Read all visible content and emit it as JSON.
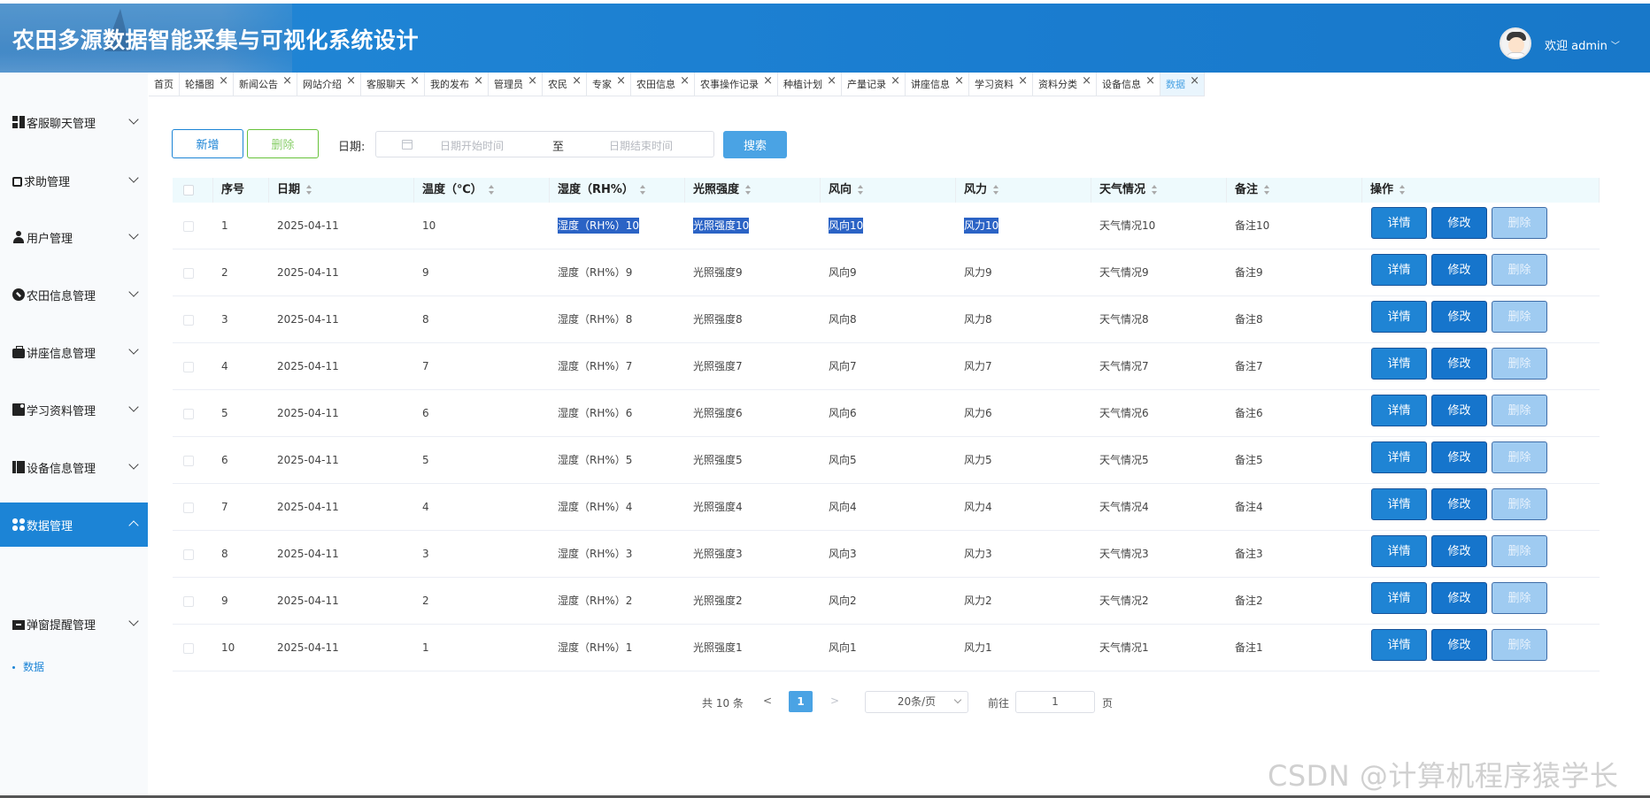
{
  "header": {
    "title": "农田多源数据智能采集与可视化系统设计",
    "welcome": "欢迎 admin"
  },
  "tabs": [
    {
      "label": "首页",
      "closable": false
    },
    {
      "label": "轮播图",
      "closable": true
    },
    {
      "label": "新闻公告",
      "closable": true
    },
    {
      "label": "网站介绍",
      "closable": true
    },
    {
      "label": "客服聊天",
      "closable": true
    },
    {
      "label": "我的发布",
      "closable": true
    },
    {
      "label": "管理员",
      "closable": true
    },
    {
      "label": "农民",
      "closable": true
    },
    {
      "label": "专家",
      "closable": true
    },
    {
      "label": "农田信息",
      "closable": true
    },
    {
      "label": "农事操作记录",
      "closable": true
    },
    {
      "label": "种植计划",
      "closable": true
    },
    {
      "label": "产量记录",
      "closable": true
    },
    {
      "label": "讲座信息",
      "closable": true
    },
    {
      "label": "学习资料",
      "closable": true
    },
    {
      "label": "资料分类",
      "closable": true
    },
    {
      "label": "设备信息",
      "closable": true
    },
    {
      "label": "数据",
      "closable": true,
      "active": true
    }
  ],
  "sidebar": {
    "items": [
      {
        "label": "客服聊天管理",
        "icon": "dashboard-icon"
      },
      {
        "label": "求助管理",
        "icon": "copy-icon"
      },
      {
        "label": "用户管理",
        "icon": "user-icon"
      },
      {
        "label": "农田信息管理",
        "icon": "compass-icon"
      },
      {
        "label": "讲座信息管理",
        "icon": "briefcase-icon"
      },
      {
        "label": "学习资料管理",
        "icon": "book-icon"
      },
      {
        "label": "设备信息管理",
        "icon": "columns-icon"
      },
      {
        "label": "数据管理",
        "icon": "clover-icon",
        "active": true
      },
      {
        "label": "弹窗提醒管理",
        "icon": "box-icon"
      }
    ],
    "sub_item": "数据"
  },
  "toolbar": {
    "add_label": "新增",
    "delete_label": "删除",
    "date_label": "日期:",
    "date_start_placeholder": "日期开始时间",
    "date_separator": "至",
    "date_end_placeholder": "日期结束时间",
    "search_label": "搜索"
  },
  "table": {
    "columns": [
      "序号",
      "日期",
      "温度（℃）",
      "湿度（RH%）",
      "光照强度",
      "风向",
      "风力",
      "天气情况",
      "备注",
      "操作"
    ],
    "rows": [
      [
        "1",
        "2025-04-11",
        "10",
        "湿度（RH%）10",
        "光照强度10",
        "风向10",
        "风力10",
        "天气情况10",
        "备注10"
      ],
      [
        "2",
        "2025-04-11",
        "9",
        "湿度（RH%）9",
        "光照强度9",
        "风向9",
        "风力9",
        "天气情况9",
        "备注9"
      ],
      [
        "3",
        "2025-04-11",
        "8",
        "湿度（RH%）8",
        "光照强度8",
        "风向8",
        "风力8",
        "天气情况8",
        "备注8"
      ],
      [
        "4",
        "2025-04-11",
        "7",
        "湿度（RH%）7",
        "光照强度7",
        "风向7",
        "风力7",
        "天气情况7",
        "备注7"
      ],
      [
        "5",
        "2025-04-11",
        "6",
        "湿度（RH%）6",
        "光照强度6",
        "风向6",
        "风力6",
        "天气情况6",
        "备注6"
      ],
      [
        "6",
        "2025-04-11",
        "5",
        "湿度（RH%）5",
        "光照强度5",
        "风向5",
        "风力5",
        "天气情况5",
        "备注5"
      ],
      [
        "7",
        "2025-04-11",
        "4",
        "湿度（RH%）4",
        "光照强度4",
        "风向4",
        "风力4",
        "天气情况4",
        "备注4"
      ],
      [
        "8",
        "2025-04-11",
        "3",
        "湿度（RH%）3",
        "光照强度3",
        "风向3",
        "风力3",
        "天气情况3",
        "备注3"
      ],
      [
        "9",
        "2025-04-11",
        "2",
        "湿度（RH%）2",
        "光照强度2",
        "风向2",
        "风力2",
        "天气情况2",
        "备注2"
      ],
      [
        "10",
        "2025-04-11",
        "1",
        "湿度（RH%）1",
        "光照强度1",
        "风向1",
        "风力1",
        "天气情况1",
        "备注1"
      ]
    ],
    "actions": {
      "detail": "详情",
      "edit": "修改",
      "delete": "删除"
    }
  },
  "pagination": {
    "total": "共 10 条",
    "prev": "<",
    "current": "1",
    "next": ">",
    "page_size": "20条/页",
    "goto_label": "前往",
    "goto_value": "1",
    "page_suffix": "页"
  },
  "watermark": "CSDN @计算机程序猿学长",
  "colors": {
    "header_blue": "#1f84d4",
    "primary": "#1c84d6",
    "search": "#4aa3e4",
    "selection": "#2b63c5",
    "table_header_bg": "#eefafd"
  }
}
